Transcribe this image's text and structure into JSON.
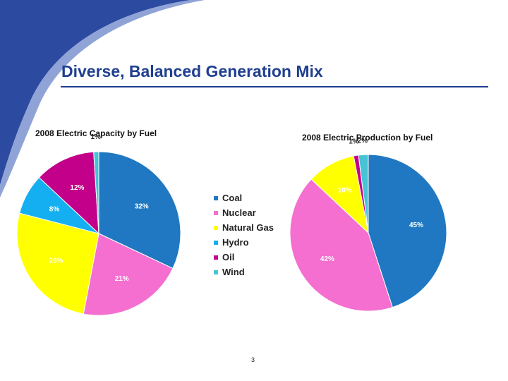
{
  "slide": {
    "title": "Diverse, Balanced Generation Mix",
    "page_number": "3",
    "title_color": "#1f3f8f",
    "decoration_color": "#2b4aa0"
  },
  "legend": [
    {
      "label": "Coal",
      "color": "#1f78c1"
    },
    {
      "label": "Nuclear",
      "color": "#f46fd0"
    },
    {
      "label": "Natural Gas",
      "color": "#ffff00"
    },
    {
      "label": "Hydro",
      "color": "#14aff0"
    },
    {
      "label": "Oil",
      "color": "#c2008a"
    },
    {
      "label": "Wind",
      "color": "#46c4d6"
    }
  ],
  "chart_data": [
    {
      "type": "pie",
      "title": "2008 Electric Capacity by Fuel",
      "categories": [
        "Coal",
        "Nuclear",
        "Natural Gas",
        "Hydro",
        "Oil",
        "Wind"
      ],
      "values": [
        32,
        21,
        26,
        8,
        12,
        1
      ],
      "data_labels": [
        "32%",
        "21%",
        "26%",
        "8%",
        "12%",
        "1%"
      ],
      "legend": "right"
    },
    {
      "type": "pie",
      "title": "2008 Electric Production by Fuel",
      "categories": [
        "Coal",
        "Nuclear",
        "Natural Gas",
        "Hydro",
        "Oil",
        "Wind"
      ],
      "values": [
        45,
        42,
        10,
        0,
        1,
        2
      ],
      "data_labels": [
        "45%",
        "42%",
        "10%",
        "",
        "1%",
        "2%"
      ],
      "legend": "right"
    }
  ]
}
